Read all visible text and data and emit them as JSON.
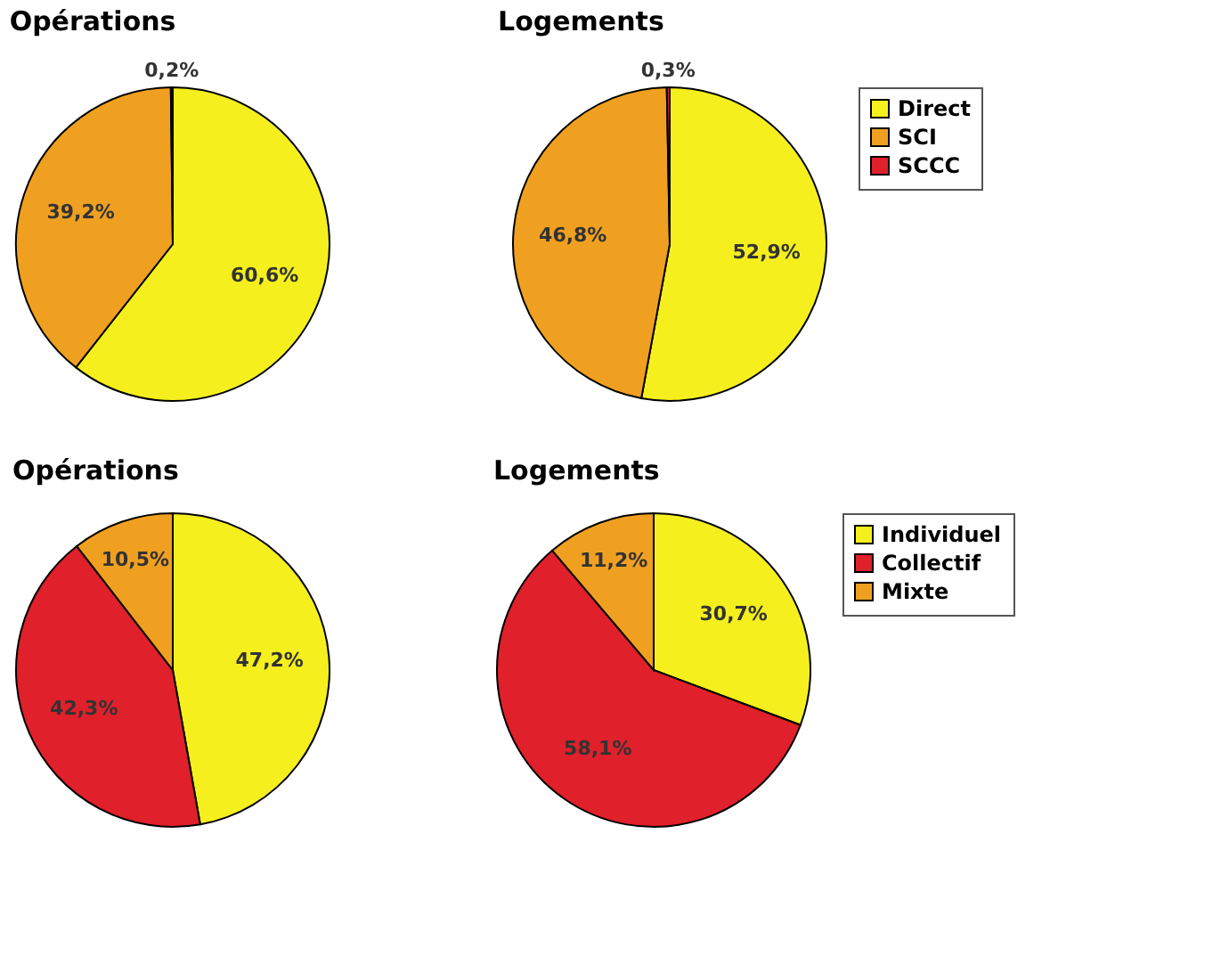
{
  "chart_data": [
    {
      "type": "pie",
      "title": "Opérations",
      "categories": [
        null,
        null,
        null
      ],
      "values": [
        60.6,
        39.2,
        0.2
      ],
      "colors": [
        "#f5ef1e",
        "#f0a020",
        "#e0202a"
      ],
      "value_labels": [
        "60,6%",
        "39,2%",
        "0,2%"
      ],
      "legend": false
    },
    {
      "type": "pie",
      "title": "Logements",
      "categories": [
        "Direct",
        "SCI",
        "SCCC"
      ],
      "values": [
        52.9,
        46.8,
        0.3
      ],
      "colors": [
        "#f5ef1e",
        "#f0a020",
        "#e0202a"
      ],
      "value_labels": [
        "52,9%",
        "46,8%",
        "0,3%"
      ],
      "legend": "right"
    },
    {
      "type": "pie",
      "title": "Opérations",
      "categories": [
        null,
        null,
        null
      ],
      "values": [
        47.2,
        42.3,
        10.5
      ],
      "colors": [
        "#f5ef1e",
        "#e0202a",
        "#f0a020"
      ],
      "value_labels": [
        "47,2%",
        "42,3%",
        "10,5%"
      ],
      "legend": false
    },
    {
      "type": "pie",
      "title": "Logements",
      "categories": [
        "Individuel",
        "Collectif",
        "Mixte"
      ],
      "values": [
        30.7,
        58.1,
        11.2
      ],
      "colors": [
        "#f5ef1e",
        "#e0202a",
        "#f0a020"
      ],
      "value_labels": [
        "30,7%",
        "58,1%",
        "11,2%"
      ],
      "legend": "right"
    }
  ]
}
